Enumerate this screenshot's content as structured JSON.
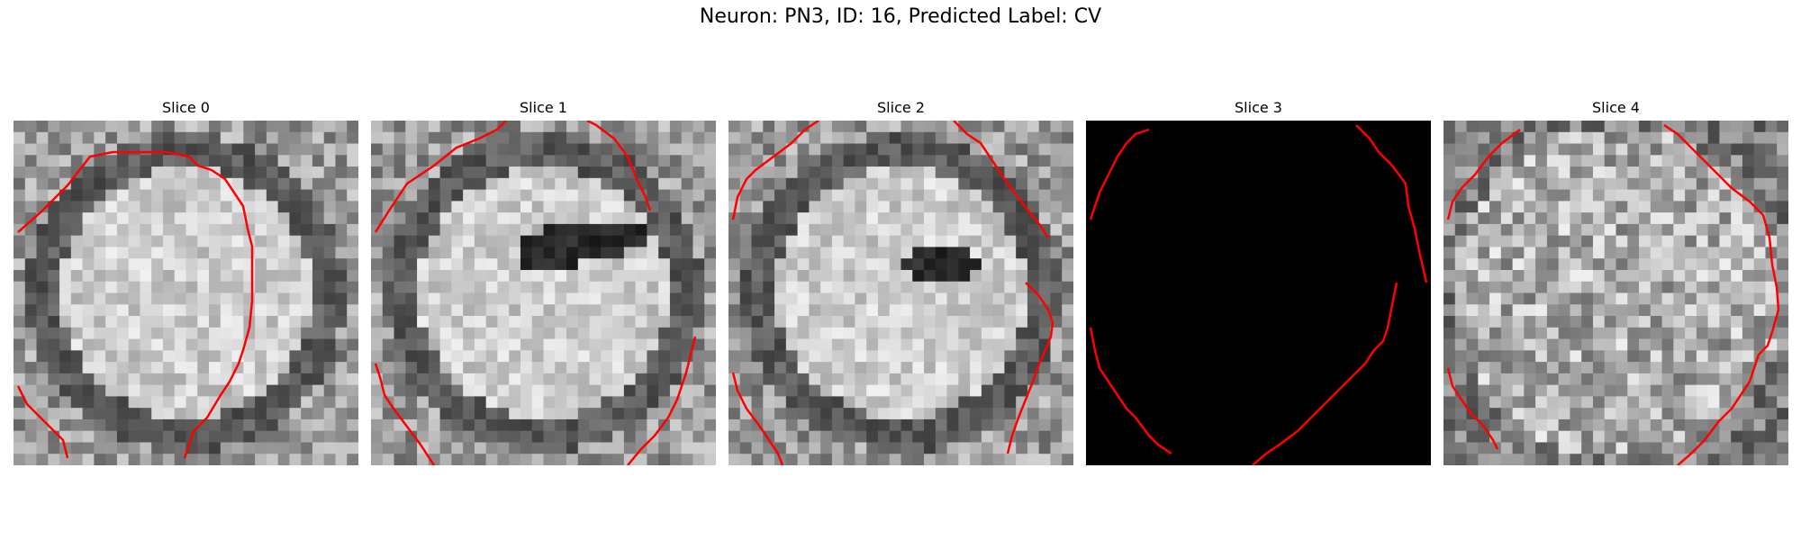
{
  "figure": {
    "title": "Neuron: PN3, ID: 16, Predicted Label: CV"
  },
  "panels": [
    {
      "title": "Slice 0",
      "pattern": "ring"
    },
    {
      "title": "Slice 1",
      "pattern": "ring-fold"
    },
    {
      "title": "Slice 2",
      "pattern": "ring-blob"
    },
    {
      "title": "Slice 3",
      "pattern": "black"
    },
    {
      "title": "Slice 4",
      "pattern": "noisy"
    }
  ],
  "colors": {
    "contour": "#ff0000",
    "background": "#000000"
  }
}
